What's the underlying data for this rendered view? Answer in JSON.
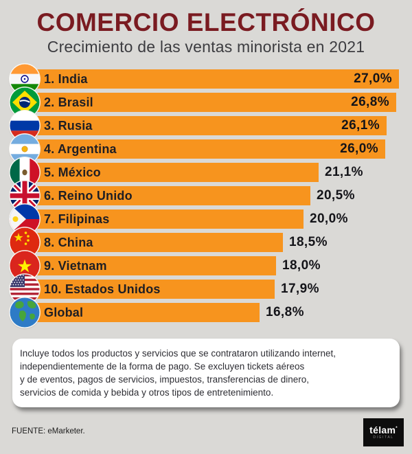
{
  "header": {
    "title": "COMERCIO ELECTRÓNICO",
    "subtitle": "Crecimiento de las ventas minorista en 2021"
  },
  "chart_data": {
    "type": "bar",
    "orientation": "horizontal",
    "title": "COMERCIO ELECTRÓNICO",
    "subtitle": "Crecimiento de las ventas minorista en 2021",
    "unit": "%",
    "xlim": [
      0,
      28
    ],
    "grid": false,
    "legend": false,
    "bar_color": "#F7941E",
    "categories": [
      "1. India",
      "2. Brasil",
      "3. Rusia",
      "4. Argentina",
      "5. México",
      "6. Reino Unido",
      "7. Filipinas",
      "8. China",
      "9. Vietnam",
      "10. Estados Unidos",
      "Global"
    ],
    "values": [
      27.0,
      26.8,
      26.1,
      26.0,
      21.1,
      20.5,
      20.0,
      18.5,
      18.0,
      17.9,
      16.8
    ],
    "value_labels": [
      "27,0%",
      "26,8%",
      "26,1%",
      "26,0%",
      "21,1%",
      "20,5%",
      "20,0%",
      "18,5%",
      "18,0%",
      "17,9%",
      "16,8%"
    ]
  },
  "rows": [
    {
      "label": "1. India",
      "flag": "india",
      "value": 27.0,
      "value_label": "27,0%"
    },
    {
      "label": "2. Brasil",
      "flag": "brazil",
      "value": 26.8,
      "value_label": "26,8%"
    },
    {
      "label": "3. Rusia",
      "flag": "russia",
      "value": 26.1,
      "value_label": "26,1%"
    },
    {
      "label": "4. Argentina",
      "flag": "argentina",
      "value": 26.0,
      "value_label": "26,0%"
    },
    {
      "label": "5. México",
      "flag": "mexico",
      "value": 21.1,
      "value_label": "21,1%"
    },
    {
      "label": "6. Reino Unido",
      "flag": "uk",
      "value": 20.5,
      "value_label": "20,5%"
    },
    {
      "label": "7. Filipinas",
      "flag": "philippines",
      "value": 20.0,
      "value_label": "20,0%"
    },
    {
      "label": "8. China",
      "flag": "china",
      "value": 18.5,
      "value_label": "18,5%"
    },
    {
      "label": "9. Vietnam",
      "flag": "vietnam",
      "value": 18.0,
      "value_label": "18,0%"
    },
    {
      "label": "10. Estados Unidos",
      "flag": "usa",
      "value": 17.9,
      "value_label": "17,9%"
    },
    {
      "label": "Global",
      "flag": "globe",
      "value": 16.8,
      "value_label": "16,8%"
    }
  ],
  "note": {
    "lines": [
      "Incluye todos los productos y servicios que se contrataron utilizando internet,",
      "independientemente de la forma de pago. Se excluyen tickets aéreos",
      "y de eventos, pagos de servicios, impuestos, transferencias de dinero,",
      "servicios de comida y bebida y otros tipos de entretenimiento."
    ]
  },
  "footer": {
    "source": "FUENTE: eMarketer.",
    "logo_text": "télam",
    "logo_subtext": "DIGITAL"
  },
  "colors": {
    "background": "#DAD9D6",
    "accent": "#F7941E",
    "title": "#7A1B21",
    "subtitle": "#3C3C40",
    "label": "#1E1E24",
    "note_text": "#2E2E34",
    "logo_bg": "#0D0D0D"
  }
}
